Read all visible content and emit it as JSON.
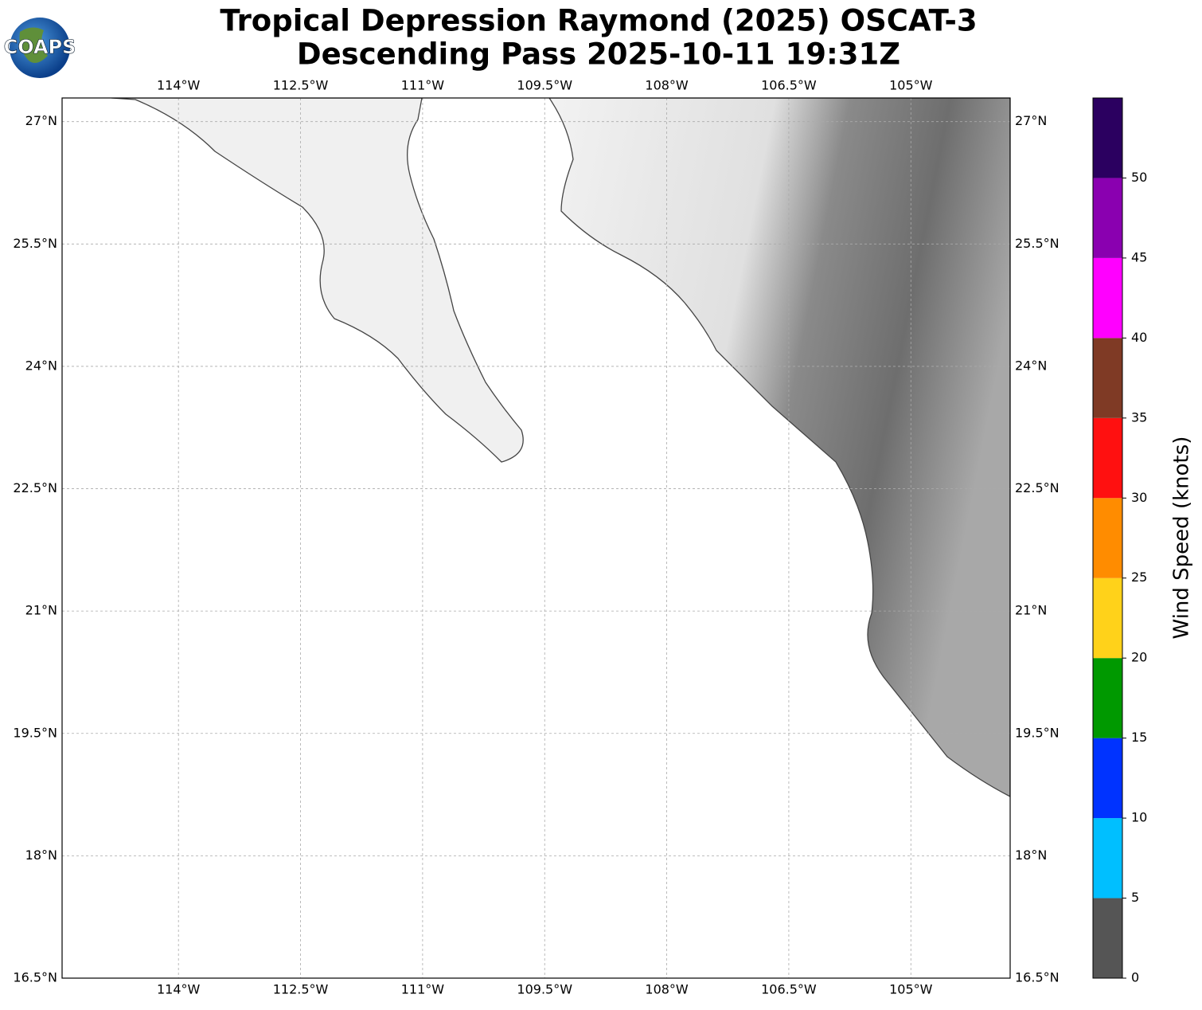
{
  "map": {
    "title": "Tropical Depression Raymond (2025) OSCAT-3",
    "subtitle": "Descending Pass 2025-10-11 19:31Z",
    "logo": "COAPS",
    "lonlim": [
      -115.43,
      -103.78
    ],
    "latlim": [
      16.5,
      27.29
    ],
    "lonticks": [
      {
        "value": -114,
        "label": "114°W"
      },
      {
        "value": -112.5,
        "label": "112.5°W"
      },
      {
        "value": -111,
        "label": "111°W"
      },
      {
        "value": -109.5,
        "label": "109.5°W"
      },
      {
        "value": -108,
        "label": "108°W"
      },
      {
        "value": -106.5,
        "label": "106.5°W"
      },
      {
        "value": -105,
        "label": "105°W"
      }
    ],
    "latticks": [
      {
        "value": 16.5,
        "label": "16.5°N"
      },
      {
        "value": 18,
        "label": "18°N"
      },
      {
        "value": 19.5,
        "label": "19.5°N"
      },
      {
        "value": 21,
        "label": "21°N"
      },
      {
        "value": 22.5,
        "label": "22.5°N"
      },
      {
        "value": 24,
        "label": "24°N"
      },
      {
        "value": 25.5,
        "label": "25.5°N"
      },
      {
        "value": 27,
        "label": "27°N"
      }
    ],
    "grid": true,
    "colorbar": {
      "label": "Wind Speed (knots)",
      "bounds": [
        0,
        5,
        10,
        15,
        20,
        25,
        30,
        35,
        40,
        45,
        50,
        55
      ],
      "colors": [
        "#555555",
        "#00bfff",
        "#0033ff",
        "#009900",
        "#ffd21a",
        "#ff8c00",
        "#ff1010",
        "#7f3a25",
        "#ff00ff",
        "#8a00b0",
        "#2b0060"
      ],
      "ticks": [
        0,
        5,
        10,
        15,
        20,
        25,
        30,
        35,
        40,
        45,
        50
      ]
    }
  }
}
